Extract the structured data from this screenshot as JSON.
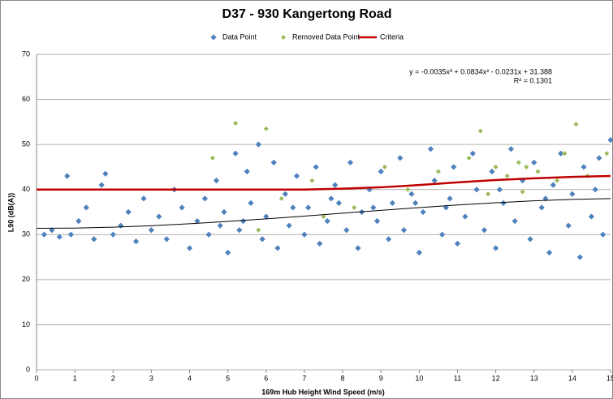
{
  "chart_data": {
    "type": "scatter",
    "title": "D37 - 930 Kangertong Road",
    "x_label": "169m Hub Height Wind Speed (m/s)",
    "y_label": "L90 (dB(A))",
    "annotations": [
      "y = -0.0035x³ + 0.0834x² - 0.0231x + 31.388",
      "R² = 0.1301"
    ],
    "xlim": [
      0,
      15
    ],
    "xticks": [
      0,
      1,
      2,
      3,
      4,
      5,
      6,
      7,
      8,
      9,
      10,
      11,
      12,
      13,
      14,
      15
    ],
    "ylim": [
      0,
      70
    ],
    "yticks": [
      0,
      10,
      20,
      30,
      40,
      50,
      60,
      70
    ],
    "grid": true,
    "legend": "top",
    "series": [
      {
        "name": "Data Point",
        "kind": "scatter",
        "color": "#4f81bd",
        "x": [
          0.2,
          0.4,
          0.6,
          0.8,
          0.9,
          1.1,
          1.3,
          1.5,
          1.7,
          1.8,
          2.0,
          2.2,
          2.4,
          2.6,
          2.8,
          3.0,
          3.2,
          3.4,
          3.6,
          3.8,
          4.0,
          4.2,
          4.4,
          4.5,
          4.7,
          4.9,
          5.0,
          5.2,
          5.3,
          5.5,
          5.6,
          5.8,
          5.9,
          6.0,
          6.2,
          6.3,
          6.5,
          6.6,
          6.8,
          7.0,
          7.1,
          7.3,
          7.4,
          7.6,
          7.8,
          7.9,
          8.1,
          8.2,
          8.4,
          8.5,
          8.7,
          8.9,
          9.0,
          9.2,
          9.3,
          9.5,
          9.6,
          9.8,
          10.0,
          10.1,
          10.3,
          10.4,
          10.6,
          10.8,
          10.9,
          11.0,
          11.2,
          11.4,
          11.5,
          11.7,
          11.9,
          12.0,
          12.2,
          12.4,
          12.5,
          12.7,
          12.9,
          13.0,
          13.2,
          13.4,
          13.5,
          13.7,
          13.9,
          14.0,
          14.2,
          14.3,
          14.5,
          14.7,
          14.8,
          15.0,
          6.7,
          7.7,
          8.8,
          9.9,
          10.7,
          12.1,
          13.3,
          14.6,
          5.4,
          4.8
        ],
        "values": [
          30,
          31,
          29.5,
          43,
          30,
          33,
          36,
          29,
          41,
          43.5,
          30,
          32,
          35,
          28.5,
          38,
          31,
          34,
          29,
          40,
          36,
          27,
          33,
          38,
          30,
          42,
          35,
          26,
          48,
          31,
          44,
          37,
          50,
          29,
          34,
          46,
          27,
          39,
          32,
          43,
          30,
          36,
          45,
          28,
          33,
          41,
          37,
          31,
          46,
          27,
          35,
          40,
          33,
          44,
          29,
          37,
          47,
          31,
          39,
          26,
          35,
          49,
          42,
          30,
          38,
          45,
          28,
          34,
          48,
          40,
          31,
          44,
          27,
          37,
          49,
          33,
          42,
          29,
          46,
          36,
          26,
          41,
          48,
          32,
          39,
          25,
          45,
          34,
          47,
          30,
          51,
          36,
          38,
          36,
          37,
          36,
          40,
          38,
          40,
          33,
          32
        ]
      },
      {
        "name": "Removed Data Point",
        "kind": "scatter",
        "color": "#9bbb59",
        "x": [
          4.6,
          5.2,
          6.0,
          6.4,
          7.2,
          8.3,
          9.1,
          9.7,
          10.5,
          11.3,
          11.6,
          12.0,
          12.3,
          12.6,
          12.8,
          13.1,
          13.6,
          13.8,
          14.1,
          14.4,
          14.9,
          5.8,
          7.5,
          11.8,
          12.7
        ],
        "values": [
          47,
          54.7,
          53.5,
          38,
          42,
          36,
          45,
          40,
          44,
          47,
          53,
          45,
          43,
          46,
          45,
          44,
          42,
          48,
          54.5,
          43,
          48,
          31,
          34,
          39,
          39.5
        ]
      },
      {
        "name": "Criteria",
        "kind": "line",
        "color": "#c00000",
        "x": [
          0,
          1,
          2,
          3,
          4,
          5,
          6,
          7,
          8,
          9,
          10,
          11,
          12,
          13,
          14,
          15
        ],
        "values": [
          40,
          40,
          40,
          40,
          40,
          40,
          40,
          40,
          40.2,
          40.5,
          41,
          41.6,
          42.1,
          42.5,
          42.8,
          43
        ]
      }
    ],
    "trendline": {
      "color": "#000000",
      "x": [
        0,
        1,
        2,
        3,
        4,
        5,
        6,
        7,
        8,
        9,
        10,
        11,
        12,
        13,
        14,
        15
      ],
      "values": [
        31.39,
        31.44,
        31.65,
        31.97,
        32.41,
        32.92,
        33.5,
        34.11,
        34.75,
        35.38,
        36,
        36.57,
        37.07,
        37.49,
        37.81,
        37.99
      ]
    }
  }
}
